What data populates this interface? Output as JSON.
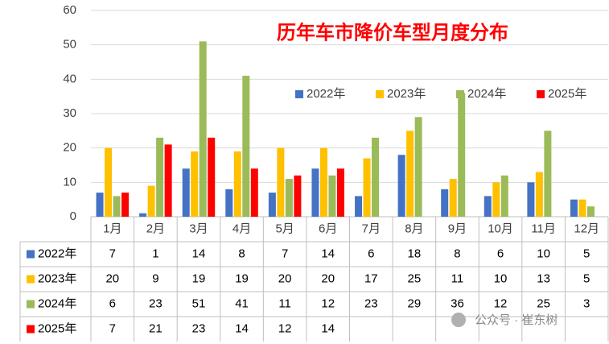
{
  "chart_data": {
    "type": "bar",
    "title": "历年车市降价车型月度分布",
    "categories": [
      "1月",
      "2月",
      "3月",
      "4月",
      "5月",
      "6月",
      "7月",
      "8月",
      "9月",
      "10月",
      "11月",
      "12月"
    ],
    "series": [
      {
        "name": "2022年",
        "color": "#4472c4",
        "values": [
          7,
          1,
          14,
          8,
          7,
          14,
          6,
          18,
          8,
          6,
          10,
          5
        ]
      },
      {
        "name": "2023年",
        "color": "#ffc000",
        "values": [
          20,
          9,
          19,
          19,
          20,
          20,
          17,
          25,
          11,
          10,
          13,
          5
        ]
      },
      {
        "name": "2024年",
        "color": "#9bbb59",
        "values": [
          6,
          23,
          51,
          41,
          11,
          12,
          23,
          29,
          36,
          12,
          25,
          3
        ]
      },
      {
        "name": "2025年",
        "color": "#ff0000",
        "values": [
          7,
          21,
          23,
          14,
          12,
          14,
          null,
          null,
          null,
          null,
          null,
          null
        ]
      }
    ],
    "ylim": [
      0,
      60
    ],
    "yticks": [
      0,
      10,
      20,
      30,
      40,
      50,
      60
    ],
    "grid": true,
    "legend": "upper-right",
    "data_table": true
  },
  "watermark": "公众号 · 崔东树"
}
